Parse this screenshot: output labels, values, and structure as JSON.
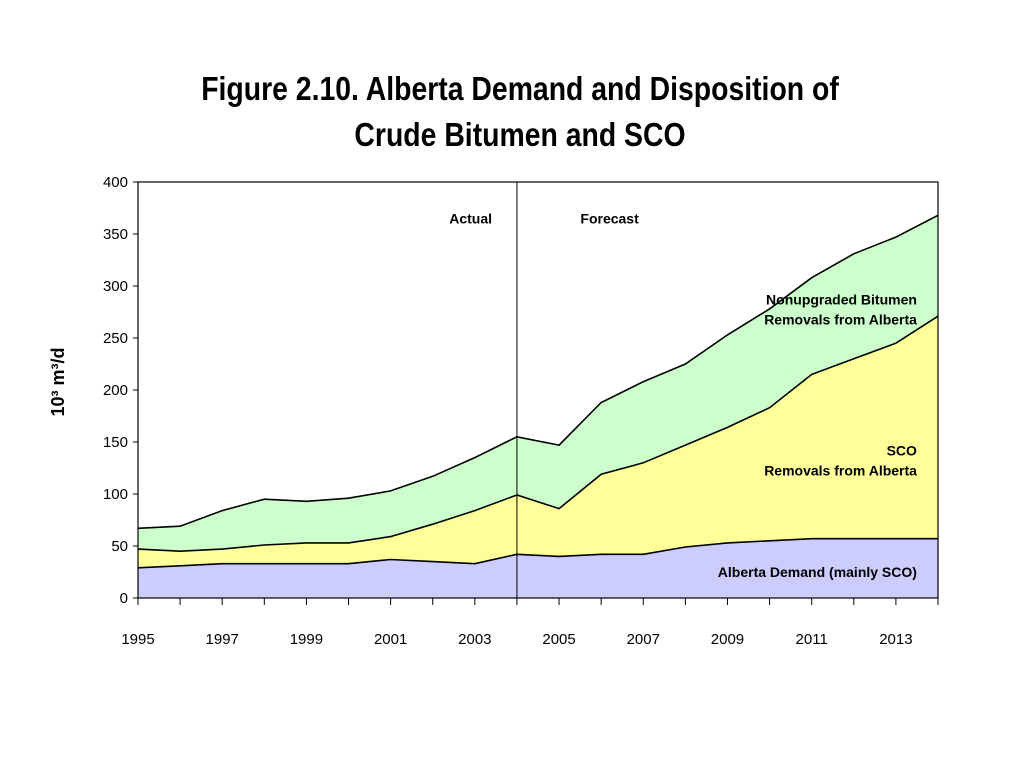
{
  "title_line1": "Figure 2.10. Alberta Demand and Disposition of",
  "title_line2": "Crude Bitumen and SCO",
  "ylabel": "10³ m³/d",
  "chart_data": {
    "type": "area",
    "stacked": true,
    "x": [
      1995,
      1996,
      1997,
      1998,
      1999,
      2000,
      2001,
      2002,
      2003,
      2004,
      2005,
      2006,
      2007,
      2008,
      2009,
      2010,
      2011,
      2012,
      2013,
      2014
    ],
    "xticklabels": [
      "1995",
      "1997",
      "1999",
      "2001",
      "2003",
      "2005",
      "2007",
      "2009",
      "2011",
      "2013"
    ],
    "xlim": [
      1995,
      2014
    ],
    "ylim": [
      0,
      400
    ],
    "yticks": [
      0,
      50,
      100,
      150,
      200,
      250,
      300,
      350,
      400
    ],
    "ylabel": "10³ m³/d",
    "grid": false,
    "divider_x": 2004,
    "series": [
      {
        "name": "Alberta Demand (mainly SCO)",
        "color": "#ccccff",
        "values": [
          29,
          31,
          33,
          33,
          33,
          33,
          37,
          35,
          33,
          42,
          40,
          42,
          42,
          49,
          53,
          55,
          57,
          57,
          57,
          57
        ]
      },
      {
        "name": "SCO Removals from Alberta",
        "color": "#ffff99",
        "values": [
          18,
          14,
          14,
          18,
          20,
          20,
          22,
          36,
          51,
          57,
          46,
          77,
          88,
          98,
          111,
          128,
          158,
          173,
          188,
          214
        ]
      },
      {
        "name": "Nonupgraded Bitumen Removals from Alberta",
        "color": "#ccffcc",
        "values": [
          20,
          24,
          37,
          44,
          40,
          43,
          44,
          46,
          51,
          56,
          61,
          69,
          78,
          78,
          89,
          95,
          93,
          101,
          102,
          97
        ]
      }
    ],
    "annotations": [
      {
        "text": "Actual",
        "x": 2002.9,
        "y": 360
      },
      {
        "text": "Forecast",
        "x": 2006.2,
        "y": 360
      }
    ],
    "series_labels": [
      {
        "lines": [
          "Nonupgraded Bitumen",
          "Removals from Alberta"
        ],
        "x": 2013.5,
        "y": 282
      },
      {
        "lines": [
          "SCO",
          "Removals from Alberta"
        ],
        "x": 2013.5,
        "y": 137
      },
      {
        "lines": [
          "Alberta Demand (mainly SCO)"
        ],
        "x": 2013.5,
        "y": 20
      }
    ]
  }
}
